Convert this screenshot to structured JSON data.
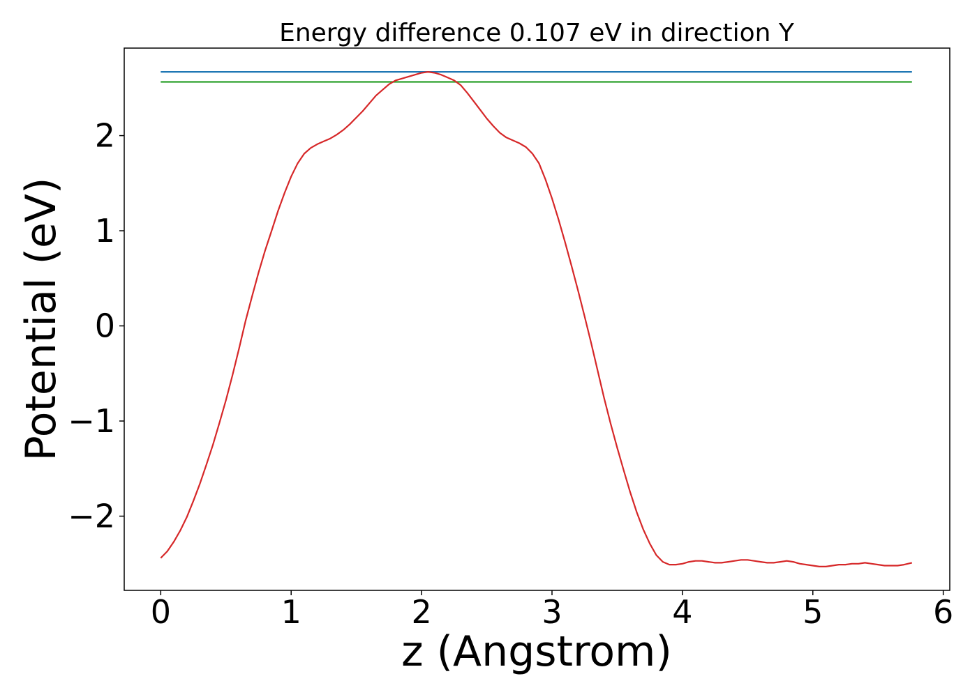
{
  "chart_data": {
    "type": "line",
    "title": "Energy difference 0.107 eV in direction Y",
    "xlabel": "z (Angstrom)",
    "ylabel": "Potential (eV)",
    "xlim": [
      -0.28,
      6.05
    ],
    "ylim": [
      -2.78,
      2.92
    ],
    "xticks": [
      0,
      1,
      2,
      3,
      4,
      5,
      6
    ],
    "yticks": [
      -2,
      -1,
      0,
      1,
      2
    ],
    "xtick_labels": [
      "0",
      "1",
      "2",
      "3",
      "4",
      "5",
      "6"
    ],
    "ytick_labels": [
      "−2",
      "−1",
      "0",
      "1",
      "2"
    ],
    "grid": false,
    "series": [
      {
        "color": "#1f77b4",
        "x": [
          0,
          5.76
        ],
        "y": [
          2.67,
          2.67
        ]
      },
      {
        "color": "#2ca02c",
        "x": [
          0,
          5.76
        ],
        "y": [
          2.565,
          2.565
        ]
      },
      {
        "color": "#d62728",
        "x": [
          0,
          0.05,
          0.1,
          0.15,
          0.2,
          0.25,
          0.3,
          0.35,
          0.4,
          0.45,
          0.5,
          0.55,
          0.6,
          0.65,
          0.7,
          0.75,
          0.8,
          0.85,
          0.9,
          0.95,
          1.0,
          1.05,
          1.1,
          1.15,
          1.2,
          1.25,
          1.3,
          1.35,
          1.4,
          1.45,
          1.5,
          1.55,
          1.6,
          1.65,
          1.7,
          1.75,
          1.8,
          1.85,
          1.9,
          1.95,
          2.0,
          2.05,
          2.1,
          2.15,
          2.2,
          2.25,
          2.3,
          2.35,
          2.4,
          2.45,
          2.5,
          2.55,
          2.6,
          2.65,
          2.7,
          2.75,
          2.8,
          2.85,
          2.9,
          2.95,
          3.0,
          3.05,
          3.1,
          3.15,
          3.2,
          3.25,
          3.3,
          3.35,
          3.4,
          3.45,
          3.5,
          3.55,
          3.6,
          3.65,
          3.7,
          3.75,
          3.8,
          3.85,
          3.9,
          3.95,
          4.0,
          4.05,
          4.1,
          4.15,
          4.2,
          4.25,
          4.3,
          4.35,
          4.4,
          4.45,
          4.5,
          4.55,
          4.6,
          4.65,
          4.7,
          4.75,
          4.8,
          4.85,
          4.9,
          4.95,
          5.0,
          5.05,
          5.1,
          5.15,
          5.2,
          5.25,
          5.3,
          5.35,
          5.4,
          5.45,
          5.5,
          5.55,
          5.6,
          5.65,
          5.7,
          5.76
        ],
        "y": [
          -2.44,
          -2.37,
          -2.27,
          -2.15,
          -2.01,
          -1.84,
          -1.66,
          -1.46,
          -1.25,
          -1.02,
          -0.78,
          -0.52,
          -0.24,
          0.05,
          0.31,
          0.56,
          0.79,
          1.0,
          1.21,
          1.4,
          1.57,
          1.71,
          1.81,
          1.87,
          1.91,
          1.94,
          1.97,
          2.01,
          2.06,
          2.12,
          2.19,
          2.26,
          2.34,
          2.42,
          2.48,
          2.54,
          2.58,
          2.6,
          2.62,
          2.64,
          2.66,
          2.67,
          2.66,
          2.64,
          2.61,
          2.58,
          2.53,
          2.45,
          2.36,
          2.27,
          2.18,
          2.1,
          2.03,
          1.98,
          1.95,
          1.92,
          1.88,
          1.81,
          1.71,
          1.54,
          1.34,
          1.12,
          0.88,
          0.63,
          0.37,
          0.1,
          -0.18,
          -0.47,
          -0.76,
          -1.03,
          -1.28,
          -1.52,
          -1.75,
          -1.96,
          -2.14,
          -2.29,
          -2.41,
          -2.48,
          -2.51,
          -2.51,
          -2.5,
          -2.48,
          -2.47,
          -2.47,
          -2.48,
          -2.49,
          -2.49,
          -2.48,
          -2.47,
          -2.46,
          -2.46,
          -2.47,
          -2.48,
          -2.49,
          -2.49,
          -2.48,
          -2.47,
          -2.48,
          -2.5,
          -2.51,
          -2.52,
          -2.53,
          -2.53,
          -2.52,
          -2.51,
          -2.51,
          -2.5,
          -2.5,
          -2.49,
          -2.5,
          -2.51,
          -2.52,
          -2.52,
          -2.52,
          -2.51,
          -2.49
        ]
      }
    ]
  }
}
